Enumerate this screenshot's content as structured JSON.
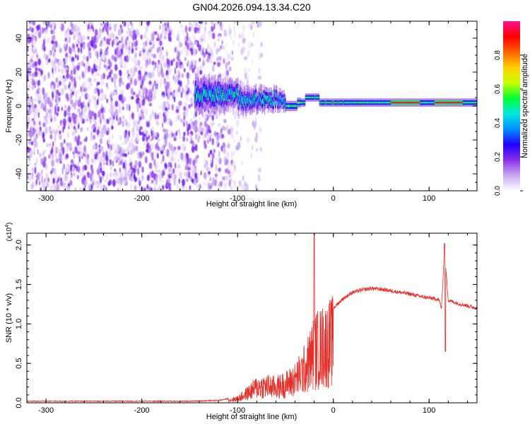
{
  "title": "GN04.2026.094.13.34.C20",
  "chart_data": [
    {
      "type": "heatmap",
      "xlabel": "Height of straight line (km)",
      "ylabel": "Frequency (Hz)",
      "xlim": [
        -320,
        150
      ],
      "ylim": [
        -50,
        50
      ],
      "xticks": [
        "-300",
        "-200",
        "-100",
        "0",
        "100"
      ],
      "yticks": [
        "-40",
        "-20",
        "0",
        "20",
        "40"
      ],
      "colorbar": {
        "label": "Normalized spectral amplitude",
        "range": [
          0.0,
          1.0
        ],
        "ticks": [
          "0.0",
          "0.2",
          "0.4",
          "0.6",
          "0.8"
        ],
        "colors": [
          "#ffffff",
          "#c8a8f0",
          "#8a30e8",
          "#2000ff",
          "#0090ff",
          "#00e8e0",
          "#00ff30",
          "#c8ff00",
          "#ffd000",
          "#ff6000",
          "#ff0000",
          "#ff1090"
        ]
      },
      "features": {
        "noise_band_x": [
          -320,
          -105
        ],
        "signal_start_x": -145,
        "signal_center_hz": 2,
        "strong_segments_x": [
          [
            60,
            90
          ],
          [
            105,
            135
          ]
        ]
      }
    },
    {
      "type": "line",
      "xlabel": "Height of straight line (km)",
      "ylabel": "SNR (10 * v/v)",
      "multiplier": "(x10^4)",
      "xlim": [
        -320,
        150
      ],
      "ylim": [
        0,
        2.15
      ],
      "xticks": [
        "-300",
        "-200",
        "-100",
        "0",
        "100"
      ],
      "yticks": [
        "0.0",
        "0.5",
        "1.0",
        "1.5",
        "2.0"
      ],
      "color": "#e8302a",
      "x": [
        -320,
        -300,
        -250,
        -200,
        -150,
        -120,
        -110,
        -100,
        -90,
        -80,
        -70,
        -60,
        -50,
        -40,
        -30,
        -25,
        -20,
        -15,
        -10,
        0,
        10,
        20,
        30,
        40,
        50,
        60,
        70,
        80,
        90,
        100,
        110,
        113,
        116,
        120,
        130,
        140,
        150
      ],
      "y": [
        0.02,
        0.02,
        0.02,
        0.02,
        0.02,
        0.03,
        0.05,
        0.08,
        0.18,
        0.3,
        0.32,
        0.3,
        0.35,
        0.45,
        0.65,
        0.8,
        1.0,
        1.05,
        1.1,
        1.2,
        1.32,
        1.4,
        1.43,
        1.45,
        1.44,
        1.42,
        1.4,
        1.38,
        1.35,
        1.33,
        1.31,
        1.2,
        1.95,
        1.3,
        1.26,
        1.23,
        1.2
      ],
      "spikes": [
        {
          "x": -20,
          "y": 2.15
        },
        {
          "x": 116,
          "y": 2.02
        },
        {
          "x": 117,
          "y": 0.65
        }
      ]
    }
  ]
}
